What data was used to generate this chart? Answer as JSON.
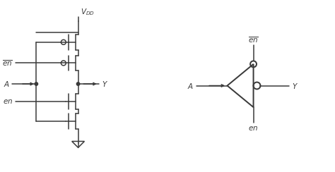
{
  "bg_color": "#ffffff",
  "line_color": "#3a3a3a",
  "line_width": 1.1,
  "fig_width": 4.74,
  "fig_height": 2.44,
  "label_fontsize": 7.5,
  "vdd_label": "$V_{DD}$",
  "en_bar_label": "$\\overline{en}$",
  "en_label": "$en$",
  "A_label": "$A$",
  "Y_label": "$Y$"
}
